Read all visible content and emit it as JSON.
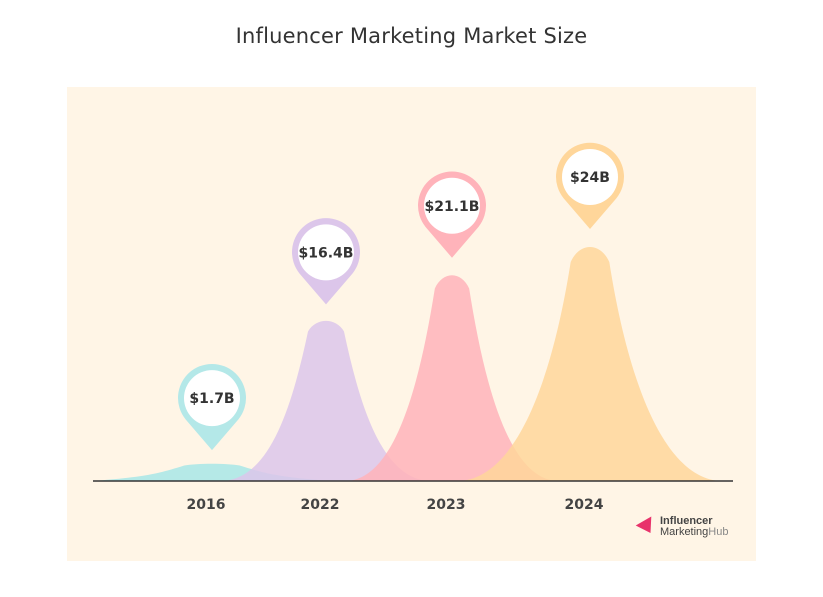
{
  "title": "Influencer Marketing Market Size",
  "chart_data": {
    "type": "area",
    "title": "Influencer Marketing Market Size",
    "categories": [
      "2016",
      "2022",
      "2023",
      "2024"
    ],
    "values": [
      1.7,
      16.4,
      21.1,
      24
    ],
    "value_labels": [
      "$1.7B",
      "$16.4B",
      "$21.1B",
      "$24B"
    ],
    "unit": "$B",
    "colors": [
      "#a8e6e6",
      "#dcc6ea",
      "#ffb3ba",
      "#ffd69a"
    ],
    "pin_colors": [
      "#b4e8e8",
      "#dcc6ea",
      "#ffb3ba",
      "#ffd69a"
    ],
    "background": "#fff5e6",
    "axis_color": "#333333"
  },
  "brand": {
    "line1": "Influencer",
    "line2_a": "Marketing",
    "line2_b": "Hub",
    "color": "#e8336b"
  }
}
